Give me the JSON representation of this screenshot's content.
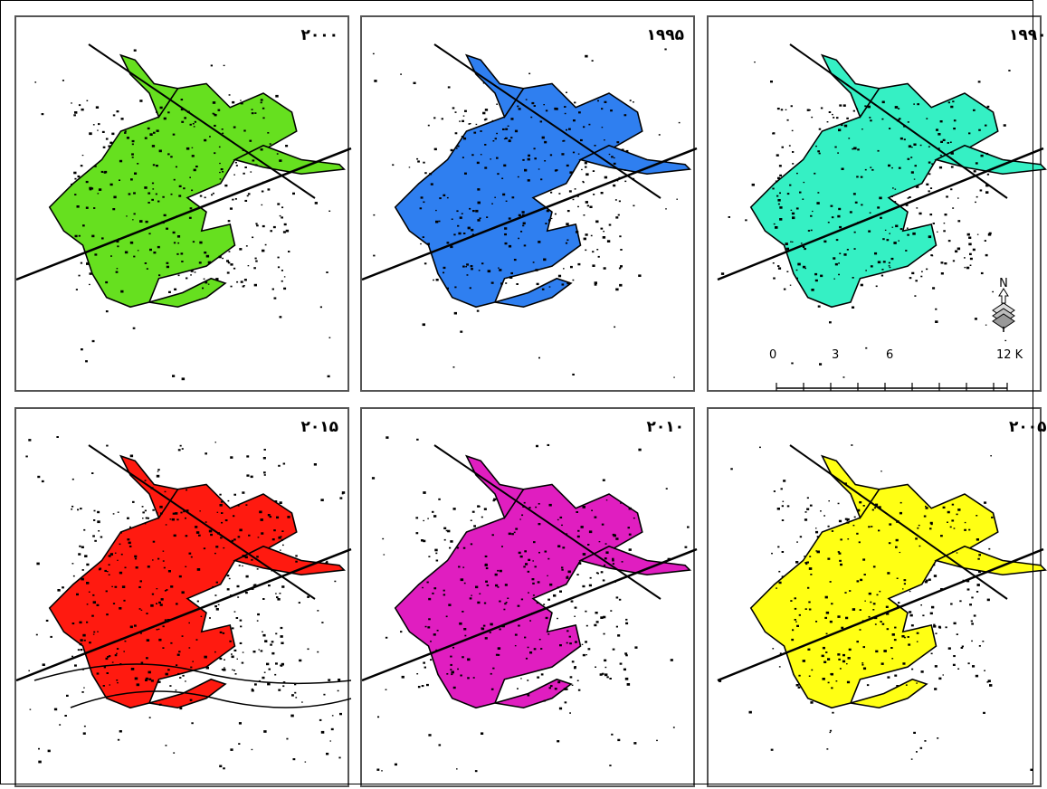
{
  "panels": [
    {
      "id": "p1",
      "year": "۲۰۰۰",
      "color": "#66e01f"
    },
    {
      "id": "p2",
      "year": "۱۹۹۵",
      "color": "#2f7ff0"
    },
    {
      "id": "p3",
      "year": "۱۹۹۰",
      "color": "#35f0c4"
    },
    {
      "id": "p4",
      "year": "۲۰۱۵",
      "color": "#ff1a10"
    },
    {
      "id": "p5",
      "year": "۲۰۱۰",
      "color": "#e01ec0"
    },
    {
      "id": "p6",
      "year": "۲۰۰۵",
      "color": "#ffff14"
    }
  ],
  "scale_bar": {
    "ticks": [
      "0",
      "3",
      "6",
      "12 K"
    ]
  },
  "north_arrow": {
    "label": "N",
    "icon": "north-arrow-icon"
  }
}
